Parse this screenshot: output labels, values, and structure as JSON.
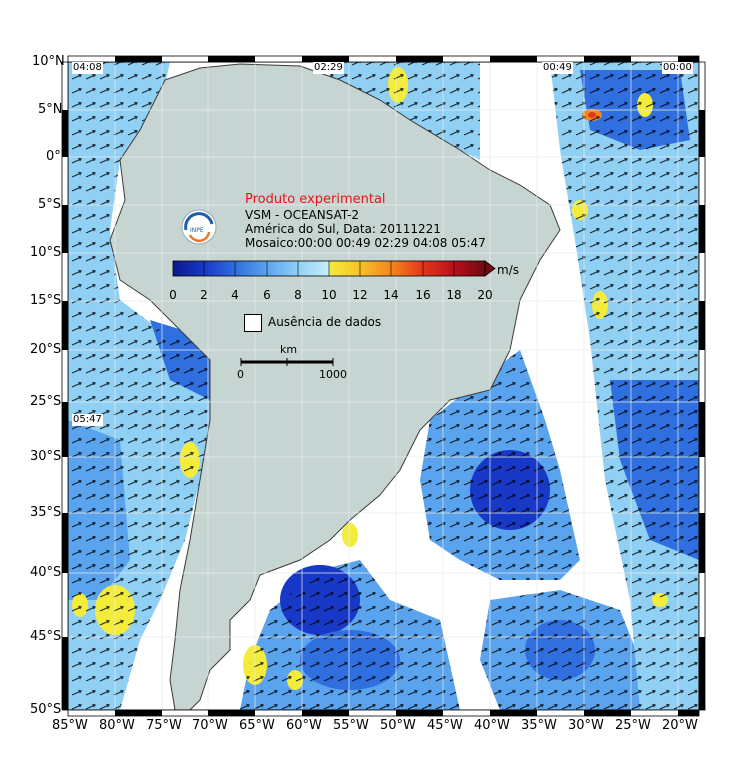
{
  "latitude_ticks": [
    "10°N",
    "5°N",
    "0°",
    "5°S",
    "10°S",
    "15°S",
    "20°S",
    "25°S",
    "30°S",
    "35°S",
    "40°S",
    "45°S",
    "50°S"
  ],
  "longitude_ticks": [
    "85°W",
    "80°W",
    "75°W",
    "70°W",
    "65°W",
    "60°W",
    "55°W",
    "50°W",
    "45°W",
    "40°W",
    "35°W",
    "30°W",
    "25°W",
    "20°W"
  ],
  "pass_times": {
    "t1": "04:08",
    "t2": "02:29",
    "t3": "00:49",
    "t4": "00:00",
    "t5": "05:47"
  },
  "info": {
    "title": "Produto experimental",
    "line1": "VSM - OCEANSAT-2",
    "line2": "América do Sul, Data: 20111221",
    "line3": "Mosaico:00:00 00:49 02:29 04:08 05:47"
  },
  "colorbar": {
    "labels": [
      "0",
      "2",
      "4",
      "6",
      "8",
      "10",
      "12",
      "14",
      "16",
      "18",
      "20"
    ],
    "unit": "m/s",
    "colors": [
      "#0a1a8c",
      "#1838c8",
      "#2f6fe0",
      "#5aa3ee",
      "#8fd0f4",
      "#c8eef8",
      "#f4ec3a",
      "#f8c02a",
      "#f4861c",
      "#e4361a",
      "#b8101a",
      "#6e0a10"
    ]
  },
  "legend": {
    "no_data": "Ausência de dados"
  },
  "scalebar": {
    "unit": "km",
    "start": "0",
    "end": "1000"
  },
  "map_colors": {
    "land": "#c6d4d2",
    "ocean_nodata": "#ffffff",
    "coast": "#3a3a3a"
  }
}
